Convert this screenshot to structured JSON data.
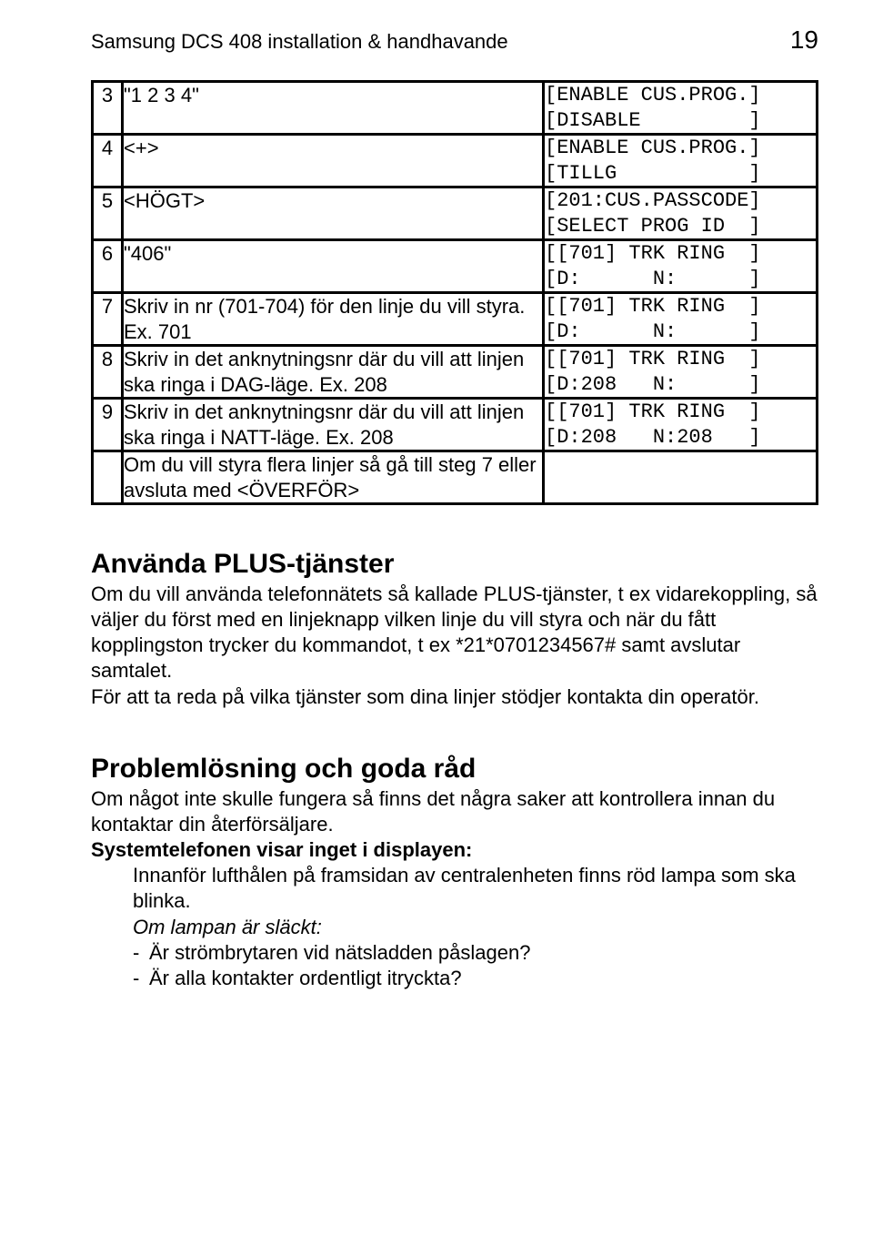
{
  "header": {
    "title": "Samsung DCS 408 installation & handhavande",
    "page_number": "19"
  },
  "table": {
    "rows": [
      {
        "num": "3",
        "desc": "\"1 2 3 4\"",
        "code": "[ENABLE CUS.PROG.]\n[DISABLE         ]"
      },
      {
        "num": "4",
        "desc": "<+>",
        "code": "[ENABLE CUS.PROG.]\n[TILLG           ]"
      },
      {
        "num": "5",
        "desc": "<HÖGT>",
        "code": "[201:CUS.PASSCODE]\n[SELECT PROG ID  ]"
      },
      {
        "num": "6",
        "desc": "\"406\"",
        "code": "[[701] TRK RING  ]\n[D:      N:      ]"
      },
      {
        "num": "7",
        "desc": "Skriv in nr (701-704) för den linje du vill styra. Ex. 701",
        "code": "[[701] TRK RING  ]\n[D:      N:      ]"
      },
      {
        "num": "8",
        "desc": "Skriv in det anknytningsnr där du vill att linjen ska ringa i DAG-läge. Ex. 208",
        "code": "[[701] TRK RING  ]\n[D:208   N:      ]"
      },
      {
        "num": "9",
        "desc": "Skriv in det anknytningsnr där du vill att linjen ska ringa i NATT-läge. Ex. 208",
        "code": "[[701] TRK RING  ]\n[D:208   N:208   ]"
      },
      {
        "num": "",
        "desc": "Om du vill styra flera linjer så gå till steg 7 eller avsluta med <ÖVERFÖR>",
        "code": ""
      }
    ]
  },
  "section_plus": {
    "heading": "Använda PLUS-tjänster",
    "body1": "Om du vill använda telefonnätets så kallade PLUS-tjänster, t ex vidarekoppling, så väljer du först med en linjeknapp vilken linje du vill styra och när du fått kopplingston trycker du kommandot, t ex *21*0701234567# samt avslutar samtalet.",
    "body2": "För att ta reda på vilka tjänster som dina linjer stödjer kontakta din operatör."
  },
  "section_problem": {
    "heading": "Problemlösning och goda råd",
    "intro": "Om något inte skulle fungera så finns det några saker att kontrollera innan du kontaktar din återförsäljare.",
    "sub_heading": "Systemtelefonen visar inget i displayen:",
    "line1": "Innanför lufthålen på framsidan av centralenheten finns röd lampa som ska blinka.",
    "italic_line": "Om lampan är släckt:",
    "bullet1": "Är strömbrytaren vid nätsladden påslagen?",
    "bullet2": "Är alla kontakter ordentligt itryckta?"
  }
}
